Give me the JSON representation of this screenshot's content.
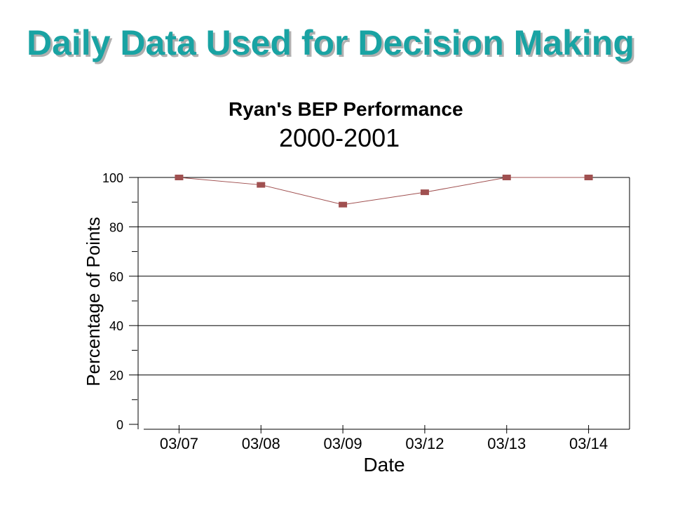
{
  "slide": {
    "title": "Daily Data Used for Decision Making"
  },
  "chart_data": {
    "type": "line",
    "title": "Ryan's BEP Performance",
    "subtitle": "2000-2001",
    "xlabel": "Date",
    "ylabel": "Percentage of Points",
    "categories": [
      "03/07",
      "03/08",
      "03/09",
      "03/12",
      "03/13",
      "03/14"
    ],
    "series": [
      {
        "values": [
          100,
          97,
          89,
          94,
          100,
          100
        ]
      }
    ],
    "ylim": [
      0,
      100
    ],
    "yticks": [
      0,
      20,
      40,
      60,
      80,
      100
    ],
    "grid": true,
    "legend": "none",
    "line_color": "#a05050",
    "marker_color": "#a05050",
    "grid_color": "#000000"
  }
}
